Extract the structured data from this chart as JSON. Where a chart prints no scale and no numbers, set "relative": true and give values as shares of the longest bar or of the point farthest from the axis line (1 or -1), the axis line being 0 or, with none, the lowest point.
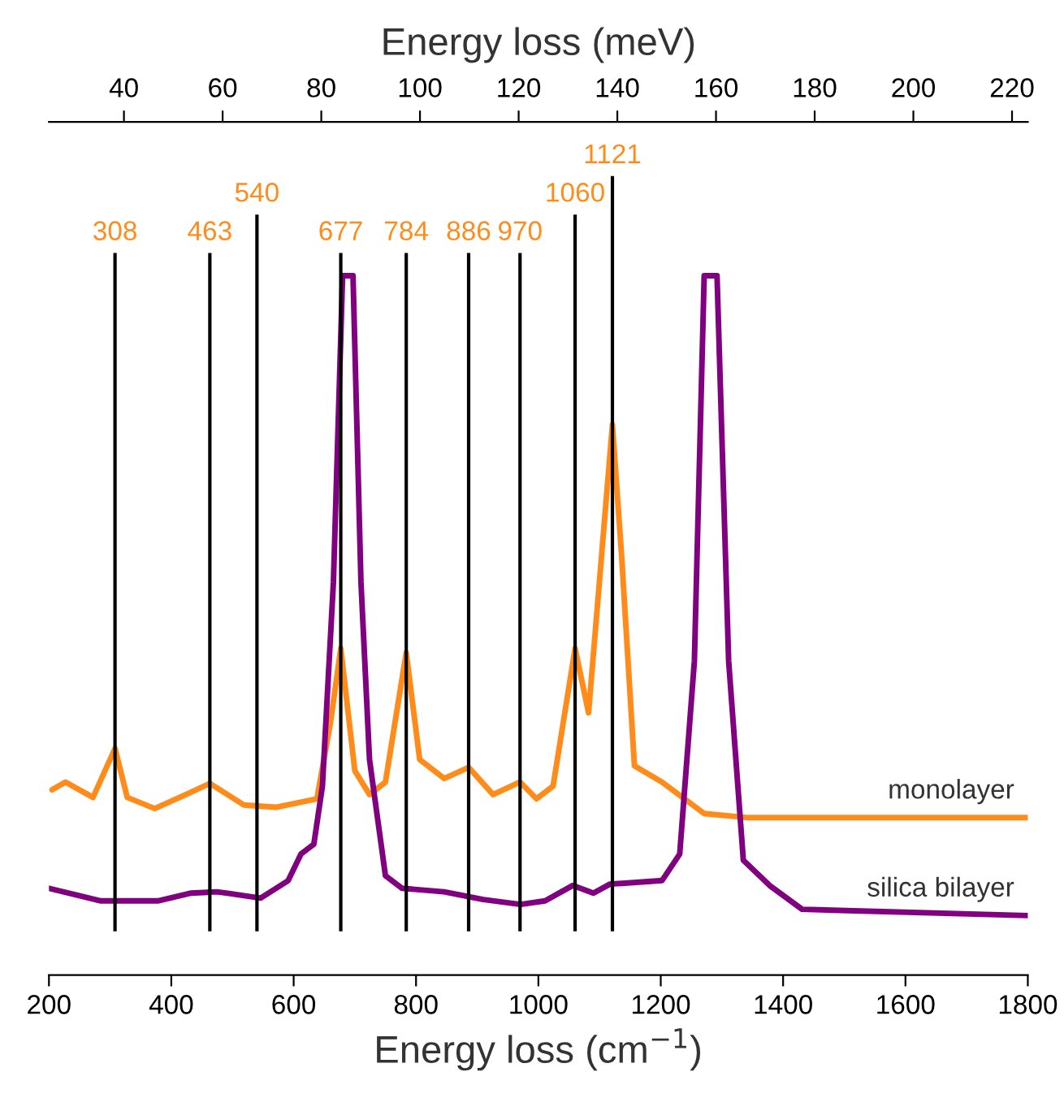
{
  "chart_data": {
    "type": "line",
    "relative": true,
    "xlabel": "Energy loss (cm$^{−1}$)",
    "x2label": "Energy loss (meV)",
    "xlim": [
      200,
      1800
    ],
    "xticks": [
      200,
      400,
      600,
      800,
      1000,
      1200,
      1400,
      1600,
      1800
    ],
    "x2lim": [
      24.8,
      223.2
    ],
    "x2ticks": [
      40,
      60,
      80,
      100,
      120,
      140,
      160,
      180,
      200,
      220
    ],
    "grid": false,
    "legend": false,
    "marker": "none",
    "line_style": "solid",
    "tick_labels": "x",
    "series": [
      {
        "name": "monolayer",
        "color": "#ff8c1a",
        "x": [
          205,
          227,
          272,
          308,
          328,
          373,
          431,
          463,
          519,
          572,
          638,
          660,
          677,
          700,
          724,
          750,
          784,
          806,
          846,
          886,
          926,
          970,
          997,
          1024,
          1060,
          1082,
          1121,
          1136,
          1157,
          1202,
          1271,
          1343,
          1800
        ],
        "values": [
          0.265,
          0.276,
          0.254,
          0.324,
          0.254,
          0.238,
          0.261,
          0.274,
          0.243,
          0.24,
          0.252,
          0.36,
          0.467,
          0.292,
          0.258,
          0.276,
          0.461,
          0.308,
          0.281,
          0.297,
          0.258,
          0.276,
          0.252,
          0.27,
          0.467,
          0.375,
          0.787,
          0.6,
          0.299,
          0.276,
          0.231,
          0.225,
          0.225
        ]
      },
      {
        "name": "silica bilayer",
        "color": "#800080",
        "x": [
          200,
          285,
          378,
          431,
          474,
          492,
          546,
          591,
          612,
          633,
          647,
          665,
          680,
          697,
          710,
          724,
          750,
          777,
          846,
          910,
          971,
          1011,
          1056,
          1090,
          1117,
          1202,
          1231,
          1255,
          1271,
          1292,
          1311,
          1335,
          1378,
          1431,
          1800
        ],
        "values": [
          0.124,
          0.106,
          0.106,
          0.117,
          0.119,
          0.117,
          0.11,
          0.135,
          0.173,
          0.187,
          0.27,
          0.562,
          1,
          1,
          0.562,
          0.308,
          0.142,
          0.124,
          0.119,
          0.108,
          0.101,
          0.106,
          0.128,
          0.117,
          0.13,
          0.135,
          0.173,
          0.449,
          1,
          1,
          0.449,
          0.164,
          0.128,
          0.094,
          0.085
        ]
      }
    ],
    "ref_lines": [
      {
        "axis": "x",
        "value": 308,
        "label": "308",
        "color": "#000000"
      },
      {
        "axis": "x",
        "value": 463,
        "label": "463",
        "color": "#000000"
      },
      {
        "axis": "x",
        "value": 540,
        "label": "540",
        "color": "#000000"
      },
      {
        "axis": "x",
        "value": 677,
        "label": "677",
        "color": "#000000"
      },
      {
        "axis": "x",
        "value": 784,
        "label": "784",
        "color": "#000000"
      },
      {
        "axis": "x",
        "value": 886,
        "label": "886",
        "color": "#000000"
      },
      {
        "axis": "x",
        "value": 970,
        "label": "970",
        "color": "#000000"
      },
      {
        "axis": "x",
        "value": 1060,
        "label": "1060",
        "color": "#000000"
      },
      {
        "axis": "x",
        "value": 1121,
        "label": "1121",
        "color": "#000000"
      }
    ]
  }
}
